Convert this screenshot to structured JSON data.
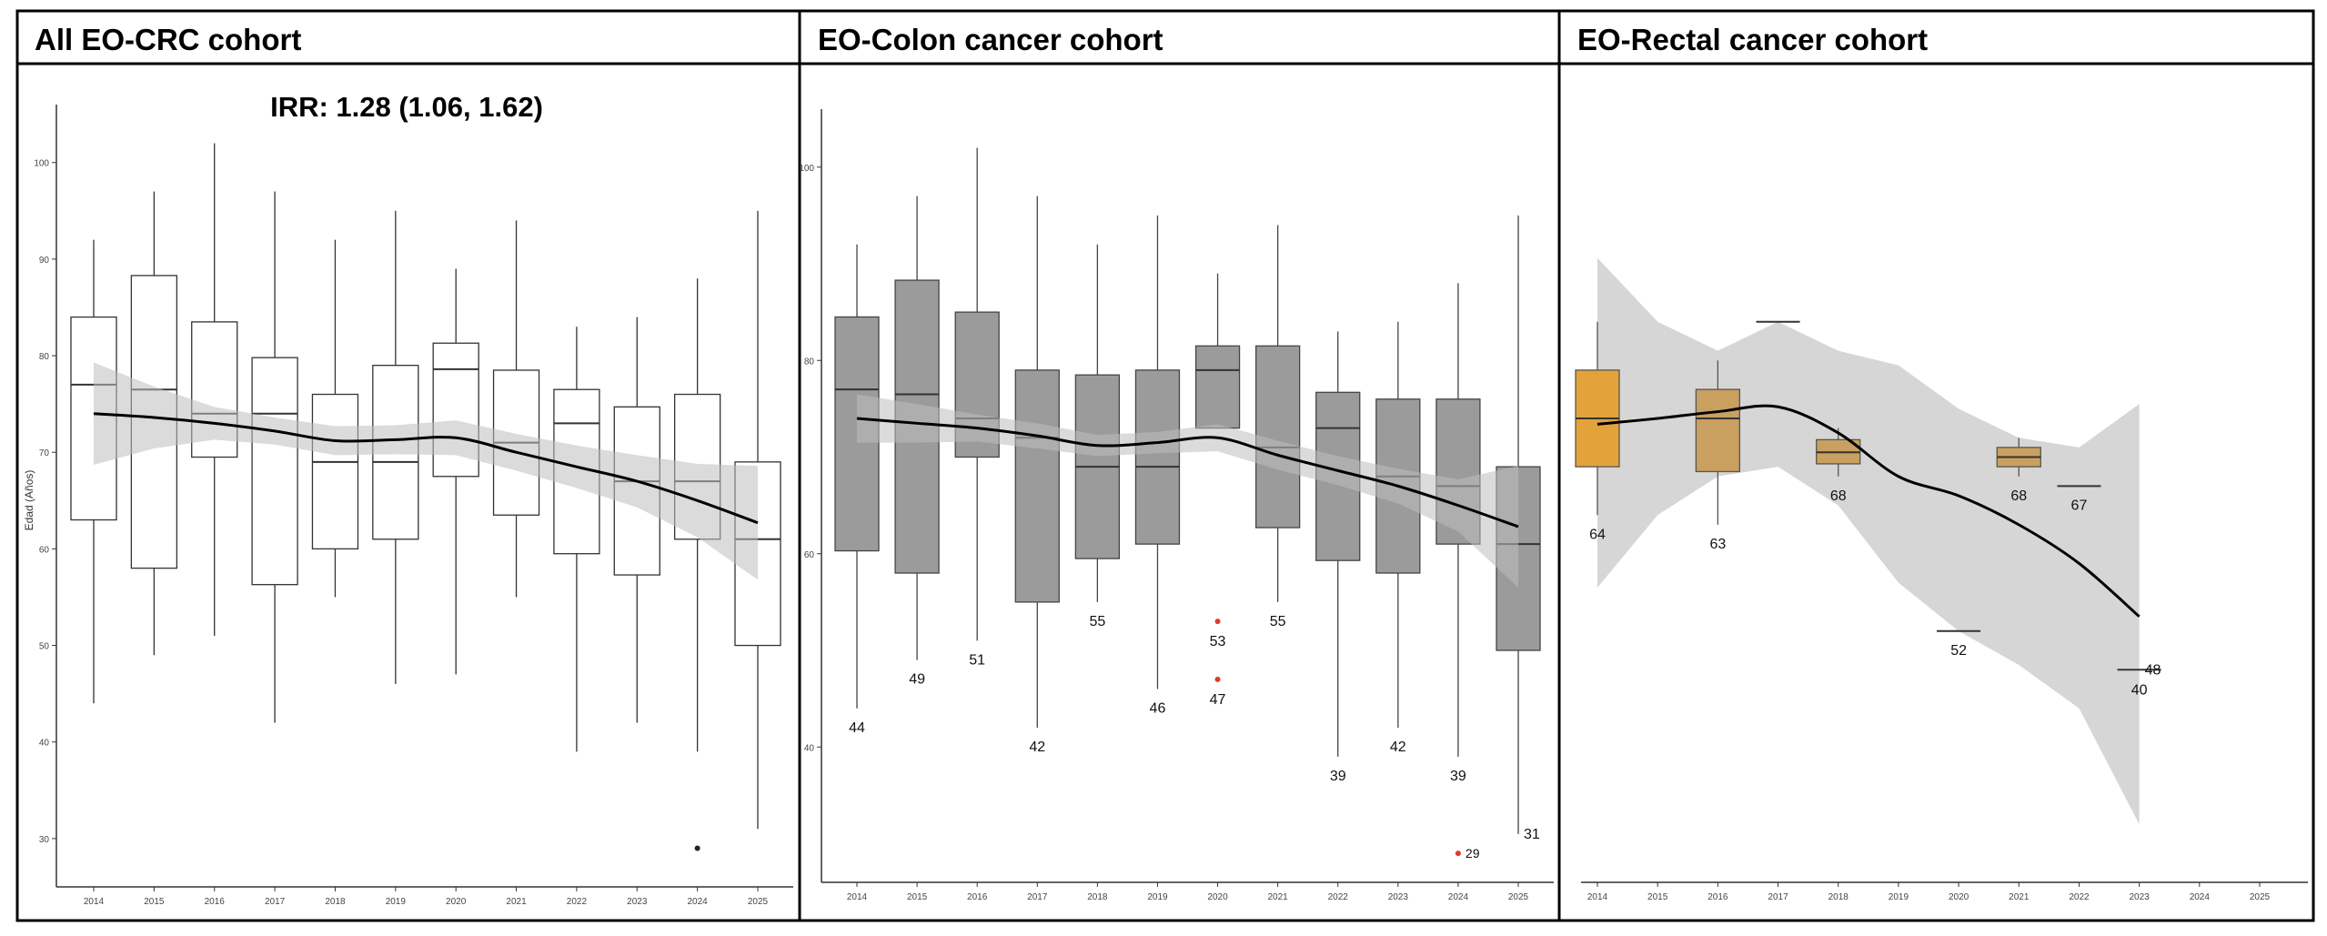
{
  "chart_data": [
    {
      "type": "box",
      "title": "All EO-CRC cohort",
      "annotation": "IRR: 1.28 (1.06, 1.62)",
      "ylabel": "Edad (Años)",
      "xlabel": "",
      "ylim": [
        25,
        106
      ],
      "yticks": [
        30,
        40,
        50,
        60,
        70,
        80,
        90,
        100
      ],
      "box_fill": "#ffffff",
      "box_stroke": "#333333",
      "outlier_color": "#222222",
      "grid": false,
      "categories": [
        "2014",
        "2015",
        "2016",
        "2017",
        "2018",
        "2019",
        "2020",
        "2021",
        "2022",
        "2023",
        "2024",
        "2025"
      ],
      "boxes": [
        {
          "x": "2014",
          "whisker_low": 44,
          "q1": 63,
          "median": 77,
          "q3": 84,
          "whisker_high": 92
        },
        {
          "x": "2015",
          "whisker_low": 49,
          "q1": 58,
          "median": 76.5,
          "q3": 88.3,
          "whisker_high": 97
        },
        {
          "x": "2016",
          "whisker_low": 51,
          "q1": 69.5,
          "median": 74,
          "q3": 83.5,
          "whisker_high": 102
        },
        {
          "x": "2017",
          "whisker_low": 42,
          "q1": 56.3,
          "median": 74,
          "q3": 79.8,
          "whisker_high": 97
        },
        {
          "x": "2018",
          "whisker_low": 55,
          "q1": 60,
          "median": 69,
          "q3": 76,
          "whisker_high": 92
        },
        {
          "x": "2019",
          "whisker_low": 46,
          "q1": 61,
          "median": 69,
          "q3": 79,
          "whisker_high": 95
        },
        {
          "x": "2020",
          "whisker_low": 47,
          "q1": 67.5,
          "median": 78.6,
          "q3": 81.3,
          "whisker_high": 89
        },
        {
          "x": "2021",
          "whisker_low": 55,
          "q1": 63.5,
          "median": 71,
          "q3": 78.5,
          "whisker_high": 94
        },
        {
          "x": "2022",
          "whisker_low": 39,
          "q1": 59.5,
          "median": 73,
          "q3": 76.5,
          "whisker_high": 83
        },
        {
          "x": "2023",
          "whisker_low": 42,
          "q1": 57.3,
          "median": 67,
          "q3": 74.7,
          "whisker_high": 84
        },
        {
          "x": "2024",
          "whisker_low": 39,
          "q1": 61,
          "median": 67,
          "q3": 76,
          "whisker_high": 88
        },
        {
          "x": "2025",
          "whisker_low": 31,
          "q1": 50,
          "median": 61,
          "q3": 69,
          "whisker_high": 95
        }
      ],
      "outliers": [
        {
          "x": "2024",
          "y": 29,
          "label": ""
        }
      ],
      "min_labels": [],
      "trend": {
        "x": [
          "2014",
          "2015",
          "2016",
          "2017",
          "2018",
          "2019",
          "2020",
          "2021",
          "2022",
          "2023",
          "2024",
          "2025"
        ],
        "y": [
          74,
          73.6,
          73,
          72.2,
          71.2,
          71.3,
          71.5,
          70,
          68.5,
          67,
          65,
          62.7
        ],
        "band_low": [
          68.7,
          70.4,
          71.3,
          70.8,
          69.7,
          69.8,
          69.7,
          68.1,
          66.3,
          64.3,
          61.2,
          56.8
        ],
        "band_high": [
          79.3,
          76.8,
          74.7,
          73.6,
          72.7,
          72.8,
          73.3,
          71.9,
          70.7,
          69.7,
          68.8,
          68.6
        ]
      }
    },
    {
      "type": "box",
      "title": "EO-Colon cancer cohort",
      "ylabel": "",
      "xlabel": "",
      "ylim": [
        26,
        106
      ],
      "yticks": [
        40,
        60,
        80,
        100
      ],
      "box_fill": "#9b9b9b",
      "box_stroke": "#444444",
      "outlier_color": "#e03a2a",
      "grid": false,
      "categories": [
        "2014",
        "2015",
        "2016",
        "2017",
        "2018",
        "2019",
        "2020",
        "2021",
        "2022",
        "2023",
        "2024",
        "2025"
      ],
      "boxes": [
        {
          "x": "2014",
          "whisker_low": 44,
          "q1": 60.3,
          "median": 77,
          "q3": 84.5,
          "whisker_high": 92
        },
        {
          "x": "2015",
          "whisker_low": 49,
          "q1": 58,
          "median": 76.5,
          "q3": 88.3,
          "whisker_high": 97
        },
        {
          "x": "2016",
          "whisker_low": 51,
          "q1": 70,
          "median": 74,
          "q3": 85,
          "whisker_high": 102
        },
        {
          "x": "2017",
          "whisker_low": 42,
          "q1": 55,
          "median": 72,
          "q3": 79,
          "whisker_high": 97
        },
        {
          "x": "2018",
          "whisker_low": 55,
          "q1": 59.5,
          "median": 69,
          "q3": 78.5,
          "whisker_high": 92
        },
        {
          "x": "2019",
          "whisker_low": 46,
          "q1": 61,
          "median": 69,
          "q3": 79,
          "whisker_high": 95
        },
        {
          "x": "2020",
          "whisker_low": 73,
          "q1": 73,
          "median": 79,
          "q3": 81.5,
          "whisker_high": 89
        },
        {
          "x": "2021",
          "whisker_low": 55,
          "q1": 62.7,
          "median": 71,
          "q3": 81.5,
          "whisker_high": 94
        },
        {
          "x": "2022",
          "whisker_low": 39,
          "q1": 59.3,
          "median": 73,
          "q3": 76.7,
          "whisker_high": 83
        },
        {
          "x": "2023",
          "whisker_low": 42,
          "q1": 58,
          "median": 68,
          "q3": 76,
          "whisker_high": 84
        },
        {
          "x": "2024",
          "whisker_low": 39,
          "q1": 61,
          "median": 67,
          "q3": 76,
          "whisker_high": 88
        },
        {
          "x": "2025",
          "whisker_low": 31,
          "q1": 50,
          "median": 61,
          "q3": 69,
          "whisker_high": 95
        }
      ],
      "outliers": [
        {
          "x": "2020",
          "y": 53,
          "label": "53"
        },
        {
          "x": "2020",
          "y": 47,
          "label": "47"
        },
        {
          "x": "2024",
          "y": 29,
          "label": "29"
        }
      ],
      "min_labels": [
        {
          "x": "2014",
          "label": "44"
        },
        {
          "x": "2015",
          "label": "49"
        },
        {
          "x": "2016",
          "label": "51"
        },
        {
          "x": "2017",
          "label": "42"
        },
        {
          "x": "2018",
          "label": "55"
        },
        {
          "x": "2019",
          "label": "46"
        },
        {
          "x": "2021",
          "label": "55"
        },
        {
          "x": "2022",
          "label": "39"
        },
        {
          "x": "2023",
          "label": "42"
        },
        {
          "x": "2024",
          "label": "39"
        },
        {
          "x": "2025",
          "label": "31"
        }
      ],
      "trend": {
        "x": [
          "2014",
          "2015",
          "2016",
          "2017",
          "2018",
          "2019",
          "2020",
          "2021",
          "2022",
          "2023",
          "2024",
          "2025"
        ],
        "y": [
          74,
          73.5,
          73,
          72.2,
          71.2,
          71.5,
          72,
          70.2,
          68.6,
          67,
          65,
          62.8
        ],
        "band_low": [
          71.5,
          71.5,
          71.6,
          70.9,
          70.1,
          70.4,
          70.6,
          68.7,
          67.1,
          65.2,
          62.3,
          56.5
        ],
        "band_high": [
          76.5,
          75.5,
          74.4,
          73.5,
          72.3,
          72.6,
          73.4,
          71.7,
          70.1,
          68.8,
          67.7,
          69.1
        ]
      }
    },
    {
      "type": "box",
      "title": "EO-Rectal cancer cohort",
      "ylabel": "",
      "xlabel": "",
      "ylim": [
        26,
        106
      ],
      "yticks": [],
      "box_stroke": "#555555",
      "grid": false,
      "categories": [
        "2014",
        "2015",
        "2016",
        "2017",
        "2018",
        "2019",
        "2020",
        "2021",
        "2022",
        "2023",
        "2024",
        "2025"
      ],
      "boxes": [
        {
          "x": "2014",
          "whisker_low": 64,
          "q1": 69,
          "median": 74,
          "q3": 79,
          "whisker_high": 84,
          "fill": "#e3a23a"
        },
        {
          "x": "2016",
          "whisker_low": 63,
          "q1": 68.5,
          "median": 74,
          "q3": 77,
          "whisker_high": 80,
          "fill": "#c9a060"
        },
        {
          "x": "2017",
          "whisker_low": 84,
          "q1": 84,
          "median": 84,
          "q3": 84,
          "whisker_high": 84,
          "fill": "#c9a060"
        },
        {
          "x": "2018",
          "whisker_low": 68,
          "q1": 69.3,
          "median": 70.5,
          "q3": 71.8,
          "whisker_high": 73,
          "fill": "#c9a060"
        },
        {
          "x": "2020",
          "whisker_low": 52,
          "q1": 52,
          "median": 52,
          "q3": 52,
          "whisker_high": 52,
          "fill": "#c9a060"
        },
        {
          "x": "2021",
          "whisker_low": 68,
          "q1": 69,
          "median": 70,
          "q3": 71,
          "whisker_high": 72,
          "fill": "#c9a060"
        },
        {
          "x": "2022",
          "whisker_low": 67,
          "q1": 67,
          "median": 67,
          "q3": 67,
          "whisker_high": 67,
          "fill": "#c9a060"
        },
        {
          "x": "2023",
          "whisker_low": 48,
          "q1": 48,
          "median": 48,
          "q3": 48,
          "whisker_high": 48,
          "fill": "#c9a060"
        }
      ],
      "outliers": [],
      "min_labels": [
        {
          "x": "2014",
          "label": "64"
        },
        {
          "x": "2016",
          "label": "63"
        },
        {
          "x": "2018",
          "label": "68"
        },
        {
          "x": "2020",
          "label": "52"
        },
        {
          "x": "2021",
          "label": "68"
        },
        {
          "x": "2022",
          "label": "67"
        },
        {
          "x": "2023",
          "label": "40"
        },
        {
          "x": "2023",
          "label": "48",
          "side": "right"
        }
      ],
      "trend": {
        "x": [
          "2014",
          "2015",
          "2016",
          "2017",
          "2018",
          "2019",
          "2020",
          "2021",
          "2022",
          "2023"
        ],
        "y": [
          73.4,
          74,
          74.7,
          75.2,
          72.5,
          68,
          66,
          63,
          59,
          53.5
        ],
        "band_low": [
          56.5,
          64,
          68,
          69,
          65,
          57,
          52,
          48.5,
          44,
          32
        ],
        "band_high": [
          90.6,
          84,
          81,
          84,
          81,
          79.5,
          75,
          72,
          71,
          75.5
        ]
      }
    }
  ]
}
